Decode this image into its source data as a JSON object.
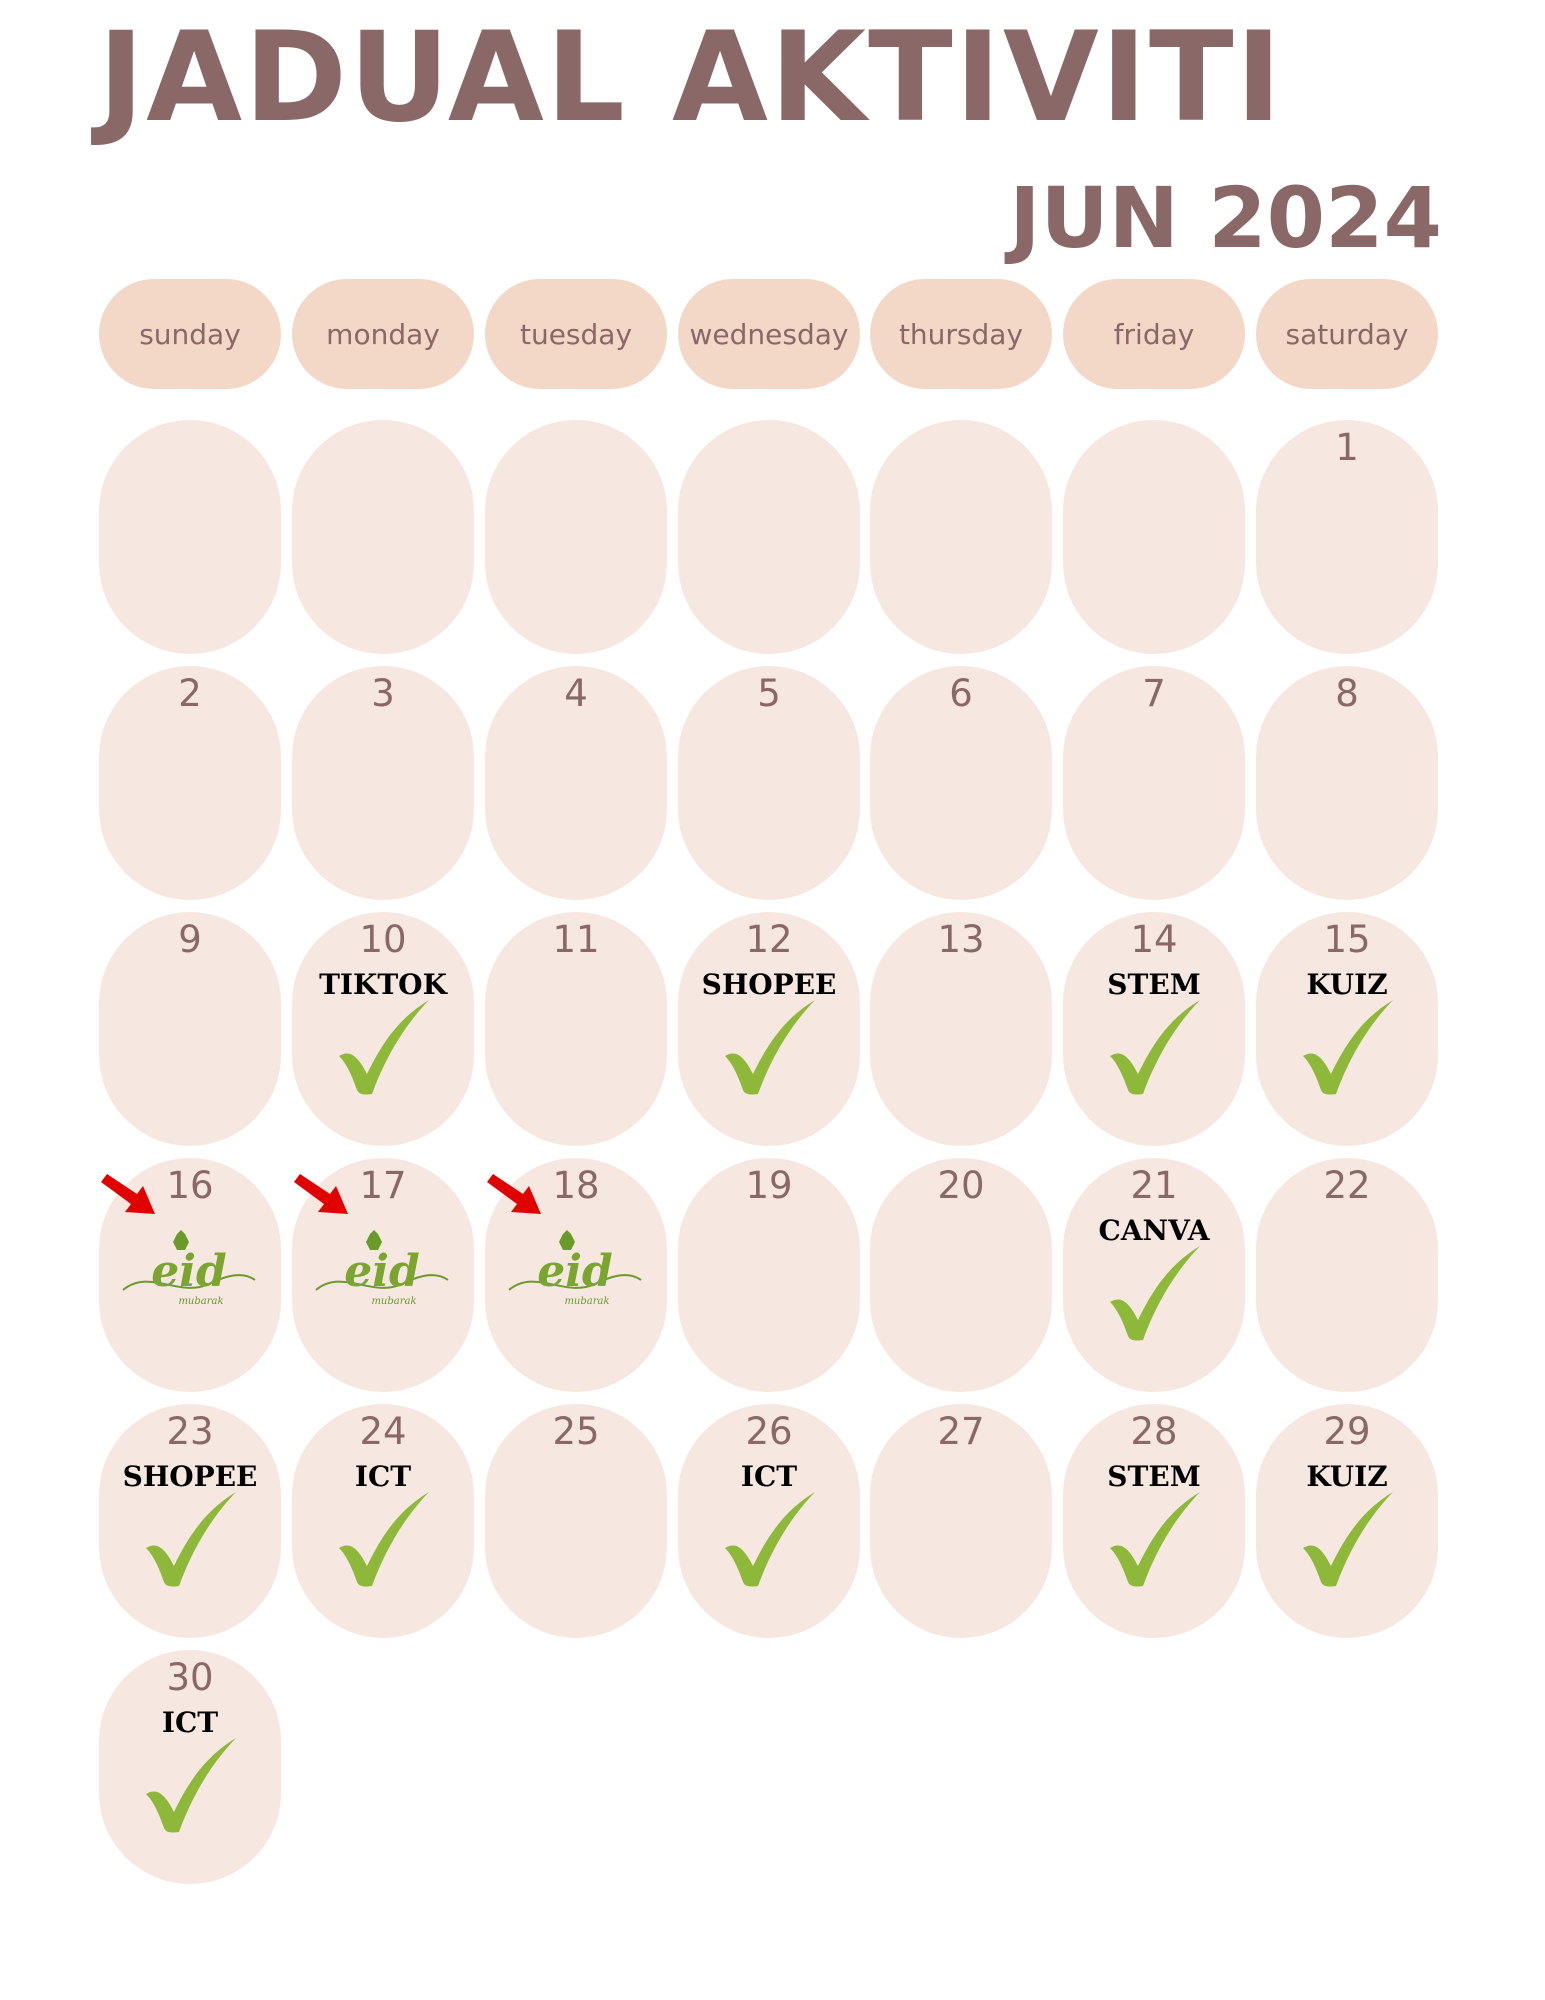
{
  "title": "JADUAL AKTIVITI",
  "month": "JUN 2024",
  "colors": {
    "text": "#8b6868",
    "header_pill": "#f3d8c8",
    "cell": "#f6e8e1",
    "check": "#8db83a",
    "arrow": "#e00000"
  },
  "weekdays": [
    "sunday",
    "monday",
    "tuesday",
    "wednesday",
    "thursday",
    "friday",
    "saturday"
  ],
  "days": [
    {
      "day": "1",
      "activity": "",
      "check": false,
      "eid": false
    },
    {
      "day": "2",
      "activity": "",
      "check": false,
      "eid": false
    },
    {
      "day": "3",
      "activity": "",
      "check": false,
      "eid": false
    },
    {
      "day": "4",
      "activity": "",
      "check": false,
      "eid": false
    },
    {
      "day": "5",
      "activity": "",
      "check": false,
      "eid": false
    },
    {
      "day": "6",
      "activity": "",
      "check": false,
      "eid": false
    },
    {
      "day": "7",
      "activity": "",
      "check": false,
      "eid": false
    },
    {
      "day": "8",
      "activity": "",
      "check": false,
      "eid": false
    },
    {
      "day": "9",
      "activity": "",
      "check": false,
      "eid": false
    },
    {
      "day": "10",
      "activity": "TIKTOK",
      "check": true,
      "eid": false
    },
    {
      "day": "11",
      "activity": "",
      "check": false,
      "eid": false
    },
    {
      "day": "12",
      "activity": "SHOPEE",
      "check": true,
      "eid": false
    },
    {
      "day": "13",
      "activity": "",
      "check": false,
      "eid": false
    },
    {
      "day": "14",
      "activity": "STEM",
      "check": true,
      "eid": false
    },
    {
      "day": "15",
      "activity": "KUIZ",
      "check": true,
      "eid": false
    },
    {
      "day": "16",
      "activity": "",
      "check": false,
      "eid": true
    },
    {
      "day": "17",
      "activity": "",
      "check": false,
      "eid": true
    },
    {
      "day": "18",
      "activity": "",
      "check": false,
      "eid": true
    },
    {
      "day": "19",
      "activity": "",
      "check": false,
      "eid": false
    },
    {
      "day": "20",
      "activity": "",
      "check": false,
      "eid": false
    },
    {
      "day": "21",
      "activity": "CANVA",
      "check": true,
      "eid": false
    },
    {
      "day": "22",
      "activity": "",
      "check": false,
      "eid": false
    },
    {
      "day": "23",
      "activity": "SHOPEE",
      "check": true,
      "eid": false
    },
    {
      "day": "24",
      "activity": "ICT",
      "check": true,
      "eid": false
    },
    {
      "day": "25",
      "activity": "",
      "check": false,
      "eid": false
    },
    {
      "day": "26",
      "activity": "ICT",
      "check": true,
      "eid": false
    },
    {
      "day": "27",
      "activity": "",
      "check": false,
      "eid": false
    },
    {
      "day": "28",
      "activity": "STEM",
      "check": true,
      "eid": false
    },
    {
      "day": "29",
      "activity": "KUIZ",
      "check": true,
      "eid": false
    },
    {
      "day": "30",
      "activity": "ICT",
      "check": true,
      "eid": false
    }
  ],
  "eid_logo": {
    "word": "eid",
    "sub": "mubarak"
  }
}
